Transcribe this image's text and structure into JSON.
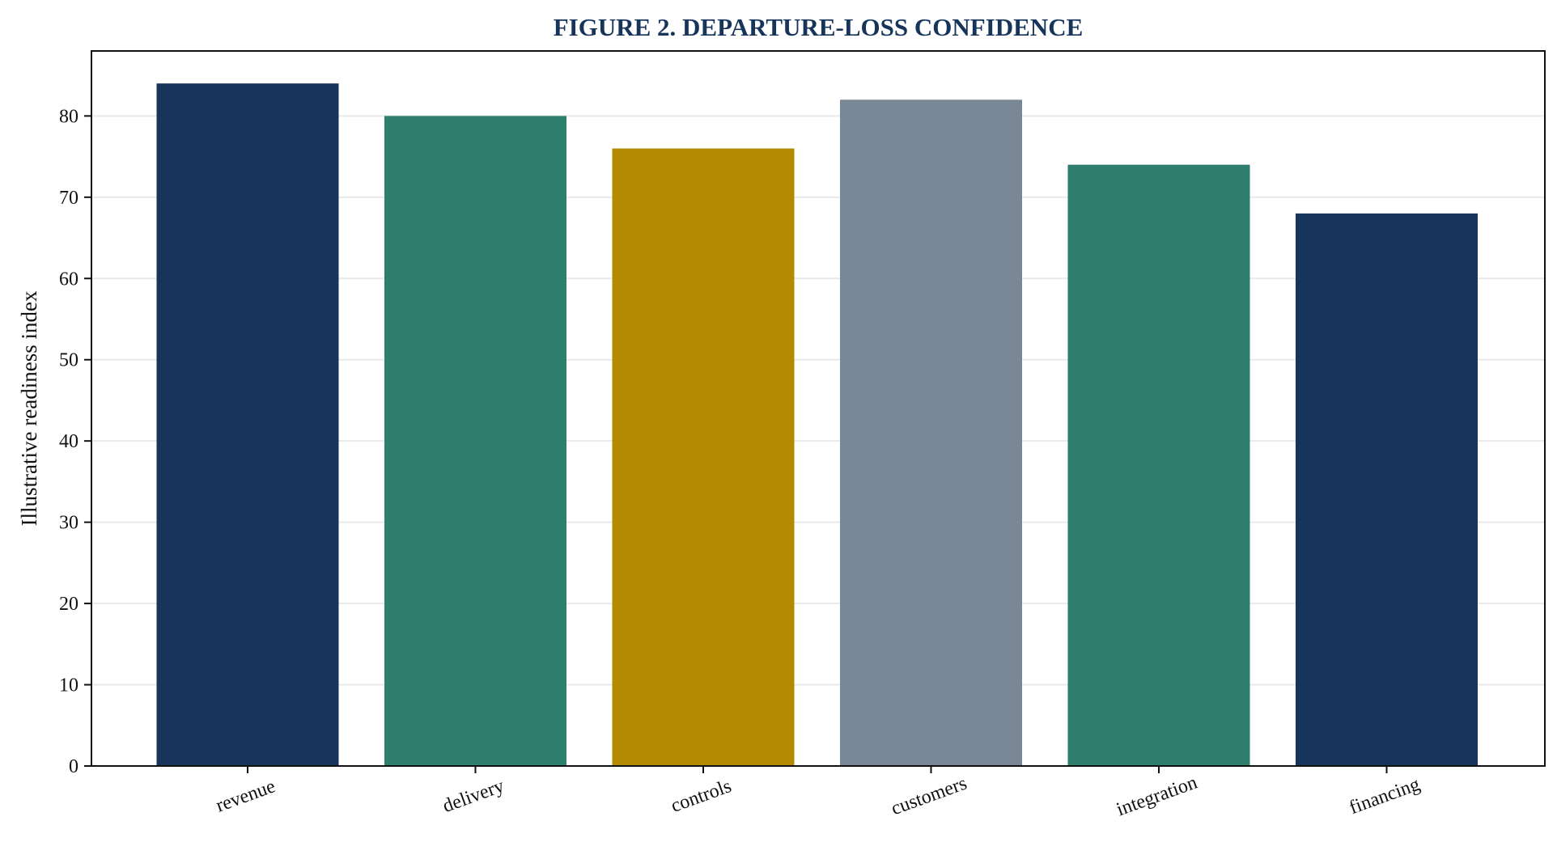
{
  "chart_data": {
    "type": "bar",
    "title": "FIGURE 2. DEPARTURE-LOSS CONFIDENCE",
    "xlabel": "",
    "ylabel": "Illustrative readiness index",
    "categories": [
      "revenue",
      "delivery",
      "controls",
      "customers",
      "integration",
      "financing"
    ],
    "values": [
      84,
      80,
      76,
      82,
      74,
      68
    ],
    "bar_colors": [
      "#17355a",
      "#2f7f6f",
      "#b38a00",
      "#7a8796",
      "#2f7f6f",
      "#17355a"
    ],
    "ylim": [
      0,
      88
    ],
    "yticks": [
      0,
      10,
      20,
      30,
      40,
      50,
      60,
      70,
      80
    ],
    "grid": "horizontal",
    "legend": "none"
  }
}
